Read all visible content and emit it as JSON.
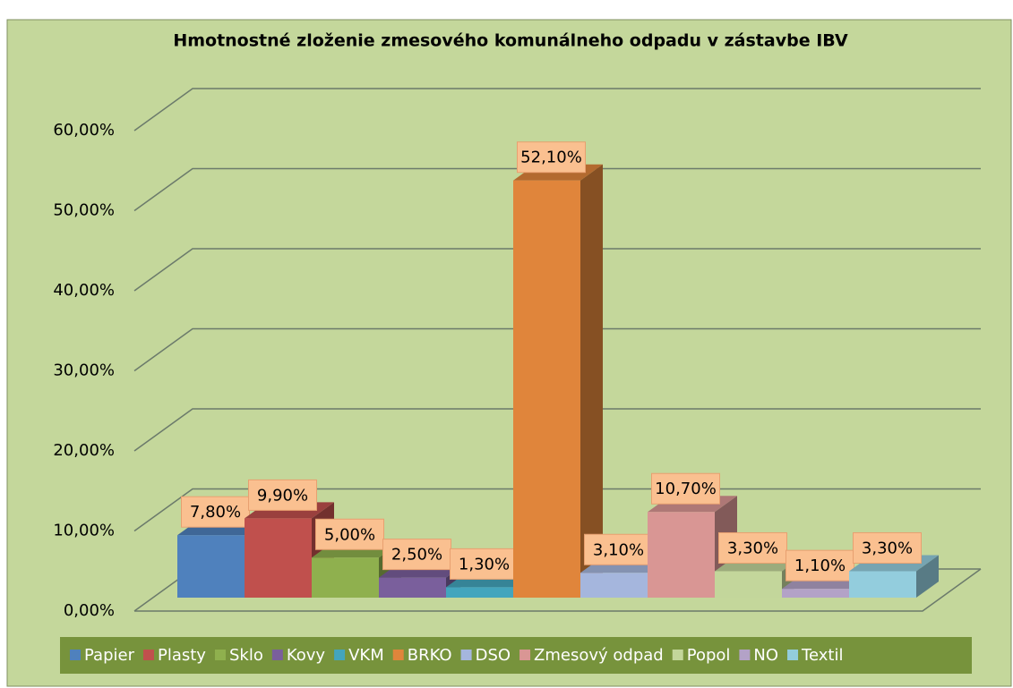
{
  "chart_data": {
    "type": "bar3d",
    "title": "Hmotnostné zloženie zmesového komunálneho odpadu v zástavbe IBV",
    "series": [
      {
        "name": "Papier",
        "color": "#4f81bd",
        "values": [
          7.8
        ],
        "value_labels": [
          "7,80%"
        ]
      },
      {
        "name": "Plasty",
        "color": "#c0504d",
        "values": [
          9.9
        ],
        "value_labels": [
          "9,90%"
        ]
      },
      {
        "name": "Sklo",
        "color": "#8fb04e",
        "values": [
          5.0
        ],
        "value_labels": [
          "5,00%"
        ]
      },
      {
        "name": "Kovy",
        "color": "#7a5f9c",
        "values": [
          2.5
        ],
        "value_labels": [
          "2,50%"
        ]
      },
      {
        "name": "VKM",
        "color": "#43a5bd",
        "values": [
          1.3
        ],
        "value_labels": [
          "1,30%"
        ]
      },
      {
        "name": "BRKO",
        "color": "#e0853b",
        "values": [
          52.1
        ],
        "value_labels": [
          "52,10%"
        ]
      },
      {
        "name": "DSO",
        "color": "#a5b6dd",
        "values": [
          3.1
        ],
        "value_labels": [
          "3,10%"
        ]
      },
      {
        "name": "Zmesový odpad",
        "color": "#d99694",
        "values": [
          10.7
        ],
        "value_labels": [
          "10,70%"
        ]
      },
      {
        "name": "Popol",
        "color": "#c3d69b",
        "values": [
          3.3
        ],
        "value_labels": [
          "3,30%"
        ]
      },
      {
        "name": "NO",
        "color": "#b3a2c7",
        "values": [
          1.1
        ],
        "value_labels": [
          "1,10%"
        ]
      },
      {
        "name": "Textil",
        "color": "#93cddd",
        "values": [
          3.3
        ],
        "value_labels": [
          "3,30%"
        ]
      }
    ],
    "ylim": [
      0,
      60
    ],
    "yticks": [
      {
        "value": 0,
        "label": "0,00%"
      },
      {
        "value": 10,
        "label": "10,00%"
      },
      {
        "value": 20,
        "label": "20,00%"
      },
      {
        "value": 30,
        "label": "30,00%"
      },
      {
        "value": 40,
        "label": "40,00%"
      },
      {
        "value": 50,
        "label": "50,00%"
      },
      {
        "value": 60,
        "label": "60,00%"
      }
    ],
    "grid": true,
    "legend": "bottom"
  }
}
